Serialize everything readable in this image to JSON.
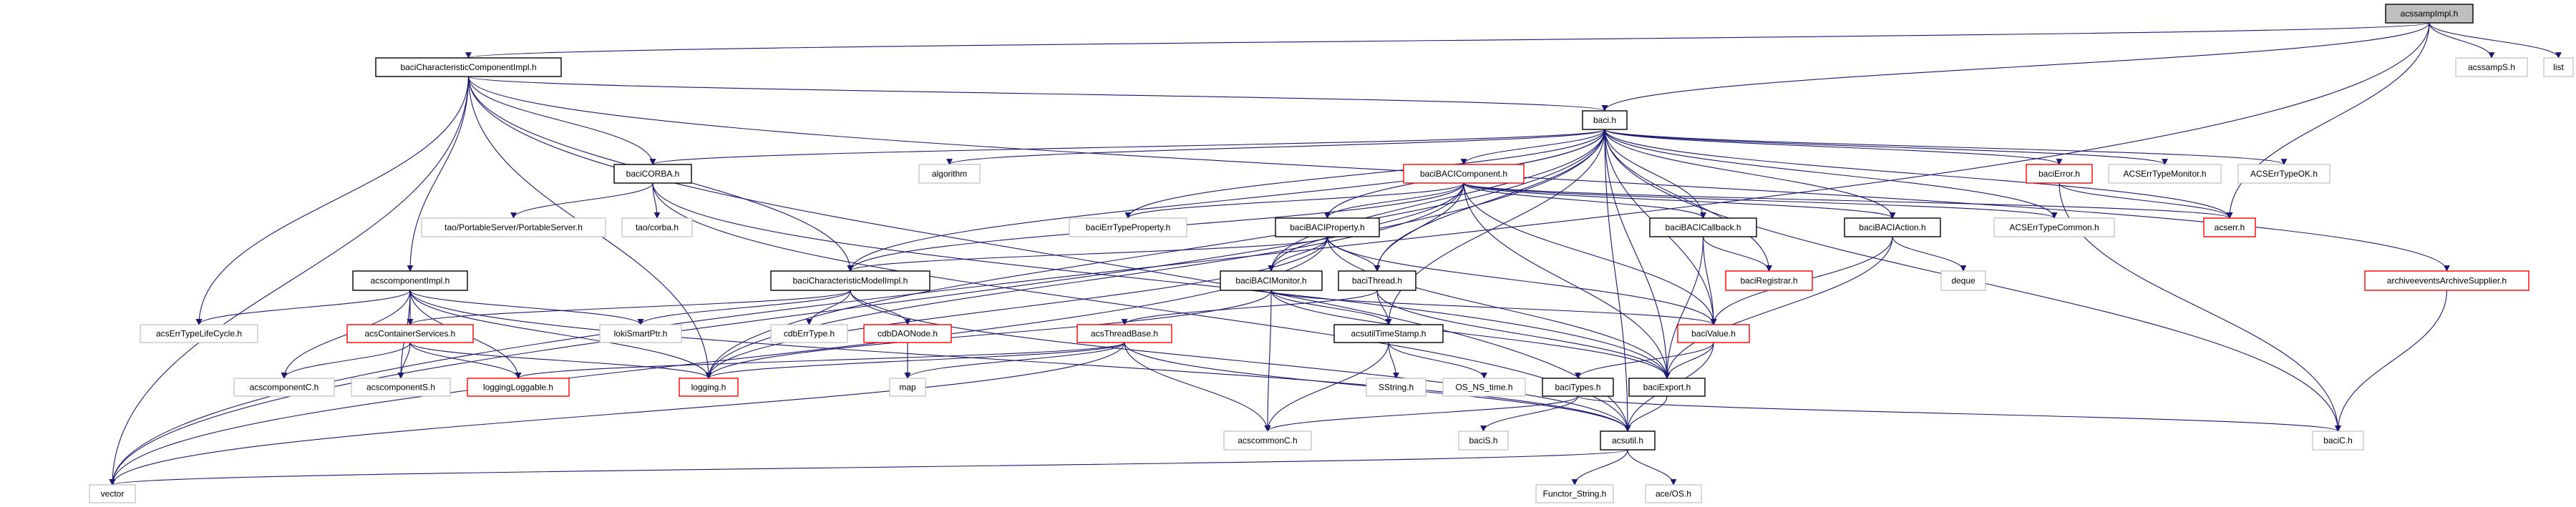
{
  "graph": {
    "edge_color": "#191970",
    "style_colors": {
      "current": "#bfbfbf",
      "documented": "#000000",
      "truncated": "#ff0000",
      "external": "#bfbfbf"
    },
    "nodes": [
      {
        "id": "acssampImpl",
        "label": "acssampImpl.h",
        "style": "current"
      },
      {
        "id": "bcci",
        "label": "baciCharacteristicComponentImpl.h",
        "style": "documented"
      },
      {
        "id": "acssampS",
        "label": "acssampS.h",
        "style": "external"
      },
      {
        "id": "list",
        "label": "list",
        "style": "external"
      },
      {
        "id": "baci",
        "label": "baci.h",
        "style": "documented"
      },
      {
        "id": "baciCORBA",
        "label": "baciCORBA.h",
        "style": "documented"
      },
      {
        "id": "algorithm",
        "label": "algorithm",
        "style": "external"
      },
      {
        "id": "baciBACIComponent",
        "label": "baciBACIComponent.h",
        "style": "truncated"
      },
      {
        "id": "baciError",
        "label": "baciError.h",
        "style": "truncated"
      },
      {
        "id": "ACSErrTypeMonitor",
        "label": "ACSErrTypeMonitor.h",
        "style": "external"
      },
      {
        "id": "ACSErrTypeOK",
        "label": "ACSErrTypeOK.h",
        "style": "external"
      },
      {
        "id": "taoPS",
        "label": "tao/PortableServer/PortableServer.h",
        "style": "external"
      },
      {
        "id": "taoCorba",
        "label": "tao/corba.h",
        "style": "external"
      },
      {
        "id": "baciErrTypeProperty",
        "label": "baciErrTypeProperty.h",
        "style": "external"
      },
      {
        "id": "baciBACIProperty",
        "label": "baciBACIProperty.h",
        "style": "documented"
      },
      {
        "id": "baciBACICallback",
        "label": "baciBACICallback.h",
        "style": "documented"
      },
      {
        "id": "baciBACIAction",
        "label": "baciBACIAction.h",
        "style": "documented"
      },
      {
        "id": "ACSErrTypeCommon",
        "label": "ACSErrTypeCommon.h",
        "style": "external"
      },
      {
        "id": "acserr",
        "label": "acserr.h",
        "style": "truncated"
      },
      {
        "id": "acscomponentImpl",
        "label": "acscomponentImpl.h",
        "style": "documented"
      },
      {
        "id": "bcmi",
        "label": "baciCharacteristicModelImpl.h",
        "style": "documented"
      },
      {
        "id": "baciBACIMonitor",
        "label": "baciBACIMonitor.h",
        "style": "documented"
      },
      {
        "id": "baciThread",
        "label": "baciThread.h",
        "style": "documented"
      },
      {
        "id": "baciRegistrar",
        "label": "baciRegistrar.h",
        "style": "truncated"
      },
      {
        "id": "deque",
        "label": "deque",
        "style": "external"
      },
      {
        "id": "archiveSupplier",
        "label": "archiveeventsArchiveSupplier.h",
        "style": "truncated"
      },
      {
        "id": "acsErrTypeLifeCycle",
        "label": "acsErrTypeLifeCycle.h",
        "style": "external"
      },
      {
        "id": "acsContainerServices",
        "label": "acsContainerServices.h",
        "style": "truncated"
      },
      {
        "id": "lokiSmartPtr",
        "label": "lokiSmartPtr.h",
        "style": "external"
      },
      {
        "id": "cdbErrType",
        "label": "cdbErrType.h",
        "style": "external"
      },
      {
        "id": "cdbDAONode",
        "label": "cdbDAONode.h",
        "style": "truncated"
      },
      {
        "id": "acsThreadBase",
        "label": "acsThreadBase.h",
        "style": "truncated"
      },
      {
        "id": "acsutilTimeStamp",
        "label": "acsutilTimeStamp.h",
        "style": "documented"
      },
      {
        "id": "baciValue",
        "label": "baciValue.h",
        "style": "truncated"
      },
      {
        "id": "acscomponentC",
        "label": "acscomponentC.h",
        "style": "external"
      },
      {
        "id": "acscomponentS",
        "label": "acscomponentS.h",
        "style": "external"
      },
      {
        "id": "loggingLoggable",
        "label": "loggingLoggable.h",
        "style": "truncated"
      },
      {
        "id": "logging",
        "label": "logging.h",
        "style": "truncated"
      },
      {
        "id": "map",
        "label": "map",
        "style": "external"
      },
      {
        "id": "SString",
        "label": "SString.h",
        "style": "external"
      },
      {
        "id": "OS_NS_time",
        "label": "OS_NS_time.h",
        "style": "external"
      },
      {
        "id": "baciTypes",
        "label": "baciTypes.h",
        "style": "documented"
      },
      {
        "id": "baciExport",
        "label": "baciExport.h",
        "style": "documented"
      },
      {
        "id": "acscommonC",
        "label": "acscommonC.h",
        "style": "external"
      },
      {
        "id": "baciS",
        "label": "baciS.h",
        "style": "external"
      },
      {
        "id": "acsutil",
        "label": "acsutil.h",
        "style": "documented"
      },
      {
        "id": "baciC",
        "label": "baciC.h",
        "style": "external"
      },
      {
        "id": "vector",
        "label": "vector",
        "style": "external"
      },
      {
        "id": "FunctorString",
        "label": "Functor_String.h",
        "style": "external"
      },
      {
        "id": "aceOS",
        "label": "ace/OS.h",
        "style": "external"
      }
    ],
    "edges": [
      [
        "acssampImpl",
        "bcci"
      ],
      [
        "acssampImpl",
        "baci"
      ],
      [
        "acssampImpl",
        "acssampS"
      ],
      [
        "acssampImpl",
        "list"
      ],
      [
        "acssampImpl",
        "acserr"
      ],
      [
        "acssampImpl",
        "vector"
      ],
      [
        "bcci",
        "baci"
      ],
      [
        "bcci",
        "baciCORBA"
      ],
      [
        "bcci",
        "acscomponentImpl"
      ],
      [
        "bcci",
        "bcmi"
      ],
      [
        "bcci",
        "acsErrTypeLifeCycle"
      ],
      [
        "bcci",
        "vector"
      ],
      [
        "bcci",
        "logging"
      ],
      [
        "bcci",
        "archiveSupplier"
      ],
      [
        "bcci",
        "acsutil"
      ],
      [
        "baci",
        "algorithm"
      ],
      [
        "baci",
        "baciBACIComponent"
      ],
      [
        "baci",
        "baciErrTypeProperty"
      ],
      [
        "baci",
        "baciBACIProperty"
      ],
      [
        "baci",
        "baciBACICallback"
      ],
      [
        "baci",
        "baciBACIAction"
      ],
      [
        "baci",
        "baciError"
      ],
      [
        "baci",
        "ACSErrTypeMonitor"
      ],
      [
        "baci",
        "ACSErrTypeOK"
      ],
      [
        "baci",
        "acserr"
      ],
      [
        "baci",
        "ACSErrTypeCommon"
      ],
      [
        "baci",
        "baciCORBA"
      ],
      [
        "baci",
        "baciValue"
      ],
      [
        "baci",
        "baciRegistrar"
      ],
      [
        "baci",
        "baciThread"
      ],
      [
        "baci",
        "baciBACIMonitor"
      ],
      [
        "baci",
        "bcmi"
      ],
      [
        "baci",
        "logging"
      ],
      [
        "baci",
        "vector"
      ],
      [
        "baci",
        "baciExport"
      ],
      [
        "baci",
        "acsutilTimeStamp"
      ],
      [
        "baci",
        "acsutil"
      ],
      [
        "baci",
        "baciC"
      ],
      [
        "baciCORBA",
        "taoPS"
      ],
      [
        "baciCORBA",
        "taoCorba"
      ],
      [
        "baciCORBA",
        "baciExport"
      ],
      [
        "baciCORBA",
        "acsutil"
      ],
      [
        "baciBACIComponent",
        "baciErrTypeProperty"
      ],
      [
        "baciBACIComponent",
        "baciBACIProperty"
      ],
      [
        "baciBACIComponent",
        "baciBACICallback"
      ],
      [
        "baciBACIComponent",
        "baciBACIAction"
      ],
      [
        "baciBACIComponent",
        "ACSErrTypeCommon"
      ],
      [
        "baciBACIComponent",
        "baciThread"
      ],
      [
        "baciBACIComponent",
        "baciBACIMonitor"
      ],
      [
        "baciBACIComponent",
        "baciValue"
      ],
      [
        "baciBACIComponent",
        "baciExport"
      ],
      [
        "baciBACIComponent",
        "bcmi"
      ],
      [
        "baciBACIComponent",
        "logging"
      ],
      [
        "baciBACIComponent",
        "acserr"
      ],
      [
        "baciBACIProperty",
        "bcmi"
      ],
      [
        "baciBACIProperty",
        "baciBACIMonitor"
      ],
      [
        "baciBACIProperty",
        "baciThread"
      ],
      [
        "baciBACIProperty",
        "baciValue"
      ],
      [
        "baciBACIProperty",
        "baciExport"
      ],
      [
        "baciBACIProperty",
        "logging"
      ],
      [
        "baciBACIProperty",
        "vector"
      ],
      [
        "baciBACICallback",
        "baciRegistrar"
      ],
      [
        "baciBACICallback",
        "baciValue"
      ],
      [
        "baciBACICallback",
        "baciExport"
      ],
      [
        "baciBACIAction",
        "deque"
      ],
      [
        "baciBACIAction",
        "baciValue"
      ],
      [
        "baciBACIAction",
        "baciExport"
      ],
      [
        "baciError",
        "acserr"
      ],
      [
        "baciError",
        "baciC"
      ],
      [
        "acscomponentImpl",
        "acsErrTypeLifeCycle"
      ],
      [
        "acscomponentImpl",
        "acsContainerServices"
      ],
      [
        "acscomponentImpl",
        "acscomponentC"
      ],
      [
        "acscomponentImpl",
        "acscomponentS"
      ],
      [
        "acscomponentImpl",
        "loggingLoggable"
      ],
      [
        "acscomponentImpl",
        "logging"
      ],
      [
        "acscomponentImpl",
        "lokiSmartPtr"
      ],
      [
        "acscomponentImpl",
        "acsutil"
      ],
      [
        "acsContainerServices",
        "acscomponentC"
      ],
      [
        "acsContainerServices",
        "acscomponentS"
      ],
      [
        "acsContainerServices",
        "loggingLoggable"
      ],
      [
        "acsContainerServices",
        "logging"
      ],
      [
        "bcmi",
        "acsContainerServices"
      ],
      [
        "bcmi",
        "lokiSmartPtr"
      ],
      [
        "bcmi",
        "cdbErrType"
      ],
      [
        "bcmi",
        "cdbDAONode"
      ],
      [
        "bcmi",
        "acsutil"
      ],
      [
        "cdbDAONode",
        "map"
      ],
      [
        "acsThreadBase",
        "map"
      ],
      [
        "acsThreadBase",
        "logging"
      ],
      [
        "acsThreadBase",
        "loggingLoggable"
      ],
      [
        "acsThreadBase",
        "acscommonC"
      ],
      [
        "acsThreadBase",
        "acsutil"
      ],
      [
        "acsThreadBase",
        "vector"
      ],
      [
        "baciBACIMonitor",
        "acsutilTimeStamp"
      ],
      [
        "baciBACIMonitor",
        "acscommonC"
      ],
      [
        "baciBACIMonitor",
        "baciValue"
      ],
      [
        "baciBACIMonitor",
        "logging"
      ],
      [
        "baciBACIMonitor",
        "baciExport"
      ],
      [
        "baciThread",
        "acsThreadBase"
      ],
      [
        "baciThread",
        "acsutilTimeStamp"
      ],
      [
        "baciThread",
        "baciExport"
      ],
      [
        "acsutilTimeStamp",
        "SString"
      ],
      [
        "acsutilTimeStamp",
        "OS_NS_time"
      ],
      [
        "acsutilTimeStamp",
        "acscommonC"
      ],
      [
        "baciValue",
        "baciTypes"
      ],
      [
        "baciValue",
        "baciExport"
      ],
      [
        "baciValue",
        "acsutil"
      ],
      [
        "baciTypes",
        "acscommonC"
      ],
      [
        "baciTypes",
        "baciS"
      ],
      [
        "baciTypes",
        "baciC"
      ],
      [
        "baciExport",
        "acsutil"
      ],
      [
        "acsutil",
        "vector"
      ],
      [
        "acsutil",
        "FunctorString"
      ],
      [
        "acsutil",
        "aceOS"
      ],
      [
        "archiveSupplier",
        "baciC"
      ]
    ]
  }
}
